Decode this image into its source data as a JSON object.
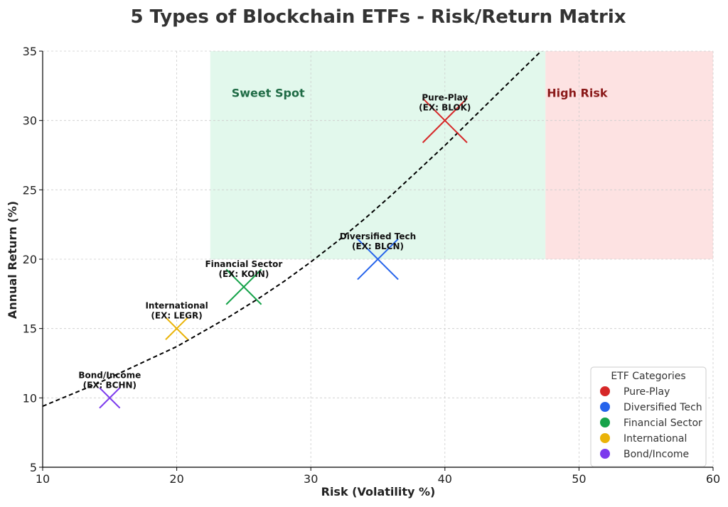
{
  "chart_data": {
    "type": "scatter",
    "title": "5 Types of Blockchain ETFs - Risk/Return Matrix",
    "xlabel": "Risk (Volatility %)",
    "ylabel": "Annual Return (%)",
    "xlim": [
      10,
      60
    ],
    "ylim": [
      5,
      35
    ],
    "xticks": [
      "10",
      "20",
      "30",
      "40",
      "50",
      "60"
    ],
    "yticks": [
      "5",
      "10",
      "15",
      "20",
      "25",
      "30",
      "35"
    ],
    "grid": true,
    "grid_style": "dashed",
    "zones": [
      {
        "label": "Sweet Spot",
        "x": [
          22.5,
          47.5
        ],
        "y": [
          20,
          35
        ],
        "fill": "#e2f8ec",
        "text_color": "#1f6b45"
      },
      {
        "label": "High Risk",
        "x": [
          47.5,
          60
        ],
        "y": [
          20,
          35
        ],
        "fill": "#fde2e2",
        "text_color": "#8b1a1a"
      }
    ],
    "curve": {
      "style": "dashed",
      "color": "#000000",
      "points": [
        [
          10,
          9.4
        ],
        [
          12,
          10.2
        ],
        [
          14,
          11.0
        ],
        [
          16,
          11.9
        ],
        [
          18,
          12.8
        ],
        [
          20,
          13.7
        ],
        [
          22,
          14.8
        ],
        [
          24,
          15.9
        ],
        [
          26,
          17.1
        ],
        [
          28,
          18.4
        ],
        [
          30,
          19.8
        ],
        [
          32,
          21.3
        ],
        [
          34,
          22.9
        ],
        [
          36,
          24.6
        ],
        [
          38,
          26.4
        ],
        [
          40,
          28.2
        ],
        [
          42,
          30.1
        ],
        [
          44,
          32.0
        ],
        [
          46,
          33.9
        ],
        [
          47.5,
          35.3
        ]
      ]
    },
    "series": [
      {
        "name": "Pure-Play",
        "label_line1": "Pure-Play",
        "label_line2": "(EX: BLOK)",
        "x": 40,
        "y": 30,
        "color": "#d62728",
        "size": 1.2
      },
      {
        "name": "Diversified Tech",
        "label_line1": "Diversified Tech",
        "label_line2": "(EX: BLCN)",
        "x": 35,
        "y": 20,
        "color": "#2563eb",
        "size": 1.1
      },
      {
        "name": "Financial Sector",
        "label_line1": "Financial Sector",
        "label_line2": "(EX: KOIN)",
        "x": 25,
        "y": 18,
        "color": "#16a34a",
        "size": 0.95
      },
      {
        "name": "International",
        "label_line1": "International",
        "label_line2": "(EX: LEGR)",
        "x": 20,
        "y": 15,
        "color": "#eab308",
        "size": 0.6
      },
      {
        "name": "Bond/Income",
        "label_line1": "Bond/Income",
        "label_line2": "(EX: BCHN)",
        "x": 15,
        "y": 10,
        "color": "#7c3aed",
        "size": 0.55
      }
    ],
    "legend": {
      "title": "ETF Categories",
      "position": "lower-right",
      "entries": [
        "Pure-Play",
        "Diversified Tech",
        "Financial Sector",
        "International",
        "Bond/Income"
      ]
    }
  }
}
